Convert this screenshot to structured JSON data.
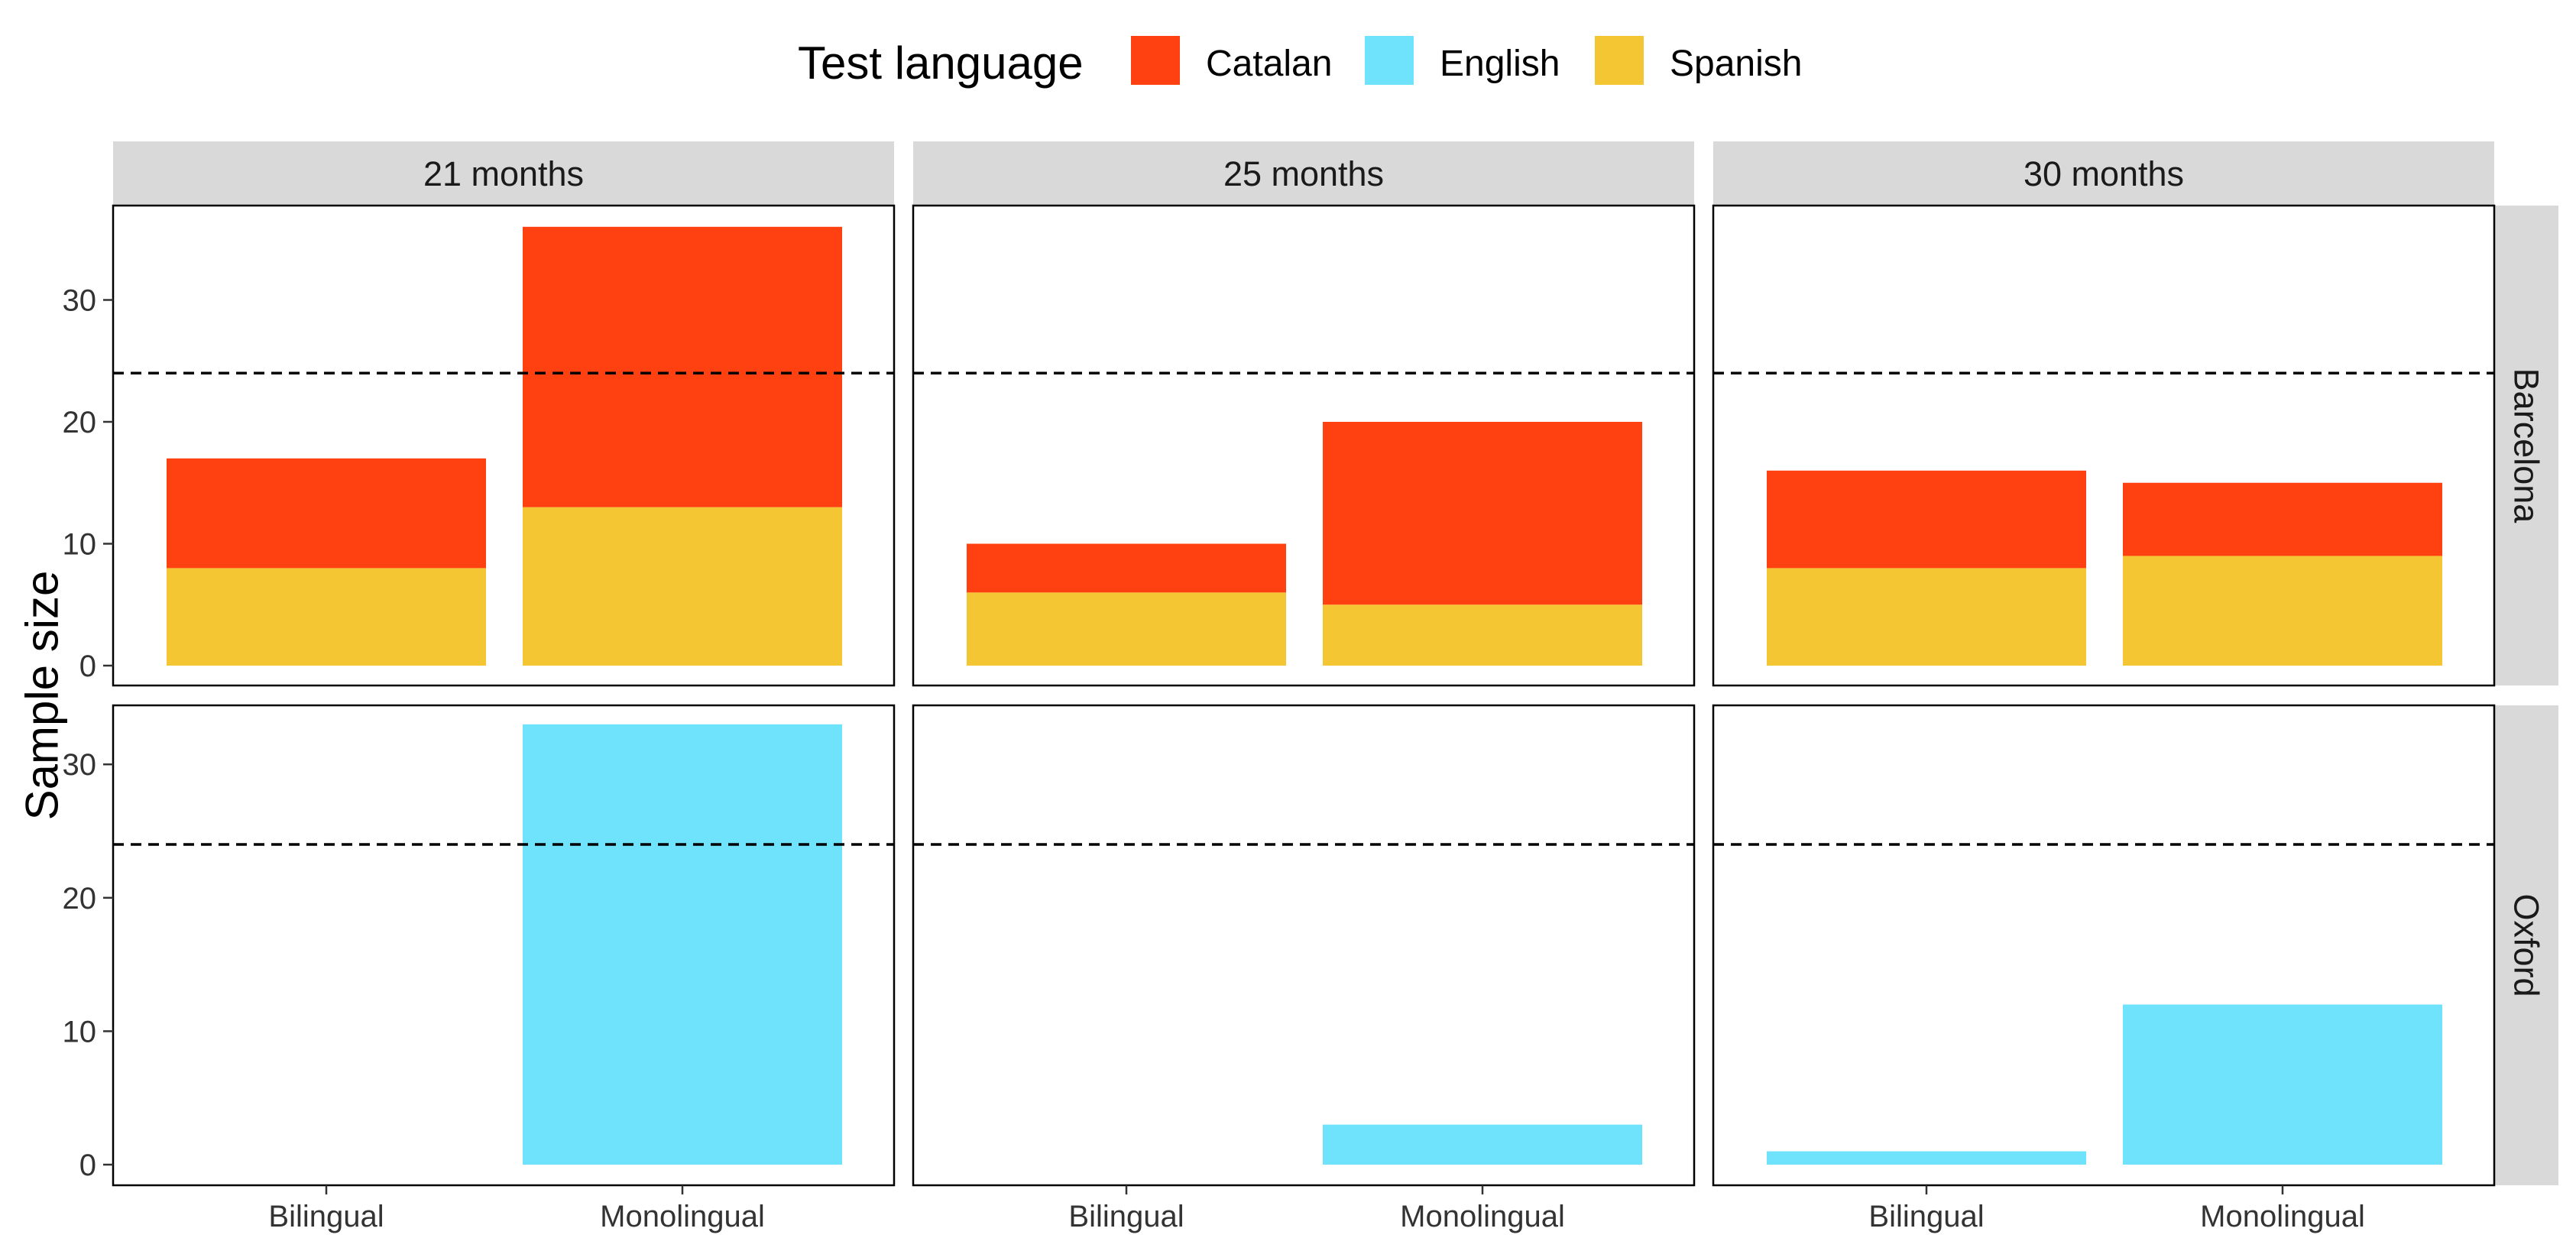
{
  "chart_data": {
    "type": "bar",
    "stacked": true,
    "ylabel": "Sample size",
    "xlabel": "",
    "ylim_barcelona": [
      0,
      36
    ],
    "ylim_oxford": [
      0,
      33
    ],
    "y_ticks": [
      0,
      10,
      20,
      30
    ],
    "reference_line": 24,
    "reference_line_style": "dashed",
    "legend": {
      "title": "Test language",
      "position": "top",
      "entries": [
        {
          "name": "Catalan",
          "color": "#FF4010"
        },
        {
          "name": "English",
          "color": "#6FE2FC"
        },
        {
          "name": "Spanish",
          "color": "#F5C634"
        }
      ]
    },
    "columns": [
      "21 months",
      "25 months",
      "30 months"
    ],
    "rows": [
      "Barcelona",
      "Oxford"
    ],
    "categories": [
      "Bilingual",
      "Monolingual"
    ],
    "panels": [
      {
        "row": "Barcelona",
        "column": "21 months",
        "series": [
          {
            "name": "Spanish",
            "values": [
              8,
              13
            ]
          },
          {
            "name": "Catalan",
            "values": [
              9,
              23
            ]
          }
        ]
      },
      {
        "row": "Barcelona",
        "column": "25 months",
        "series": [
          {
            "name": "Spanish",
            "values": [
              6,
              5
            ]
          },
          {
            "name": "Catalan",
            "values": [
              4,
              15
            ]
          }
        ]
      },
      {
        "row": "Barcelona",
        "column": "30 months",
        "series": [
          {
            "name": "Spanish",
            "values": [
              8,
              9
            ]
          },
          {
            "name": "Catalan",
            "values": [
              8,
              6
            ]
          }
        ]
      },
      {
        "row": "Oxford",
        "column": "21 months",
        "series": [
          {
            "name": "English",
            "values": [
              0,
              33
            ]
          }
        ]
      },
      {
        "row": "Oxford",
        "column": "25 months",
        "series": [
          {
            "name": "English",
            "values": [
              0,
              3
            ]
          }
        ]
      },
      {
        "row": "Oxford",
        "column": "30 months",
        "series": [
          {
            "name": "English",
            "values": [
              1,
              12
            ]
          }
        ]
      }
    ]
  }
}
